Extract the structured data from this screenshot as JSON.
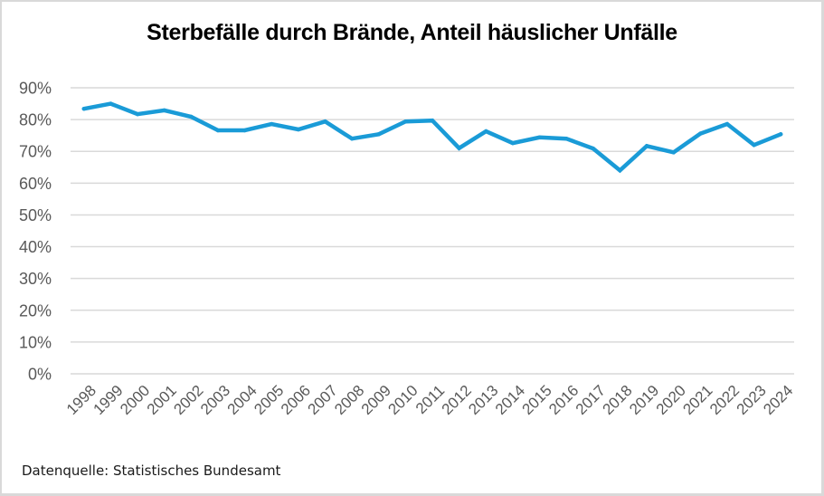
{
  "chart_data": {
    "type": "line",
    "title": "Sterbefälle durch Brände, Anteil häuslicher Unfälle",
    "xlabel": "",
    "ylabel": "",
    "categories": [
      "1998",
      "1999",
      "2000",
      "2001",
      "2002",
      "2003",
      "2004",
      "2005",
      "2006",
      "2007",
      "2008",
      "2009",
      "2010",
      "2011",
      "2012",
      "2013",
      "2014",
      "2015",
      "2016",
      "2017",
      "2018",
      "2019",
      "2020",
      "2021",
      "2022",
      "2023",
      "2024"
    ],
    "series": [
      {
        "name": "Anteil häuslicher Unfälle",
        "color": "#1a9bd7",
        "values": [
          83.4,
          85.0,
          81.7,
          82.9,
          80.9,
          76.6,
          76.6,
          78.6,
          76.9,
          79.4,
          74.0,
          75.4,
          79.4,
          79.7,
          71.0,
          76.3,
          72.6,
          74.4,
          74.0,
          70.9,
          64.0,
          71.7,
          69.7,
          75.6,
          78.6,
          72.0,
          75.4
        ]
      }
    ],
    "ylim": [
      0,
      90
    ],
    "yticks": [
      0,
      10,
      20,
      30,
      40,
      50,
      60,
      70,
      80,
      90
    ],
    "ytick_labels": [
      "0%",
      "10%",
      "20%",
      "30%",
      "40%",
      "50%",
      "60%",
      "70%",
      "80%",
      "90%"
    ],
    "grid": true,
    "legend": "none",
    "source": "Datenquelle: Statistisches Bundesamt"
  }
}
